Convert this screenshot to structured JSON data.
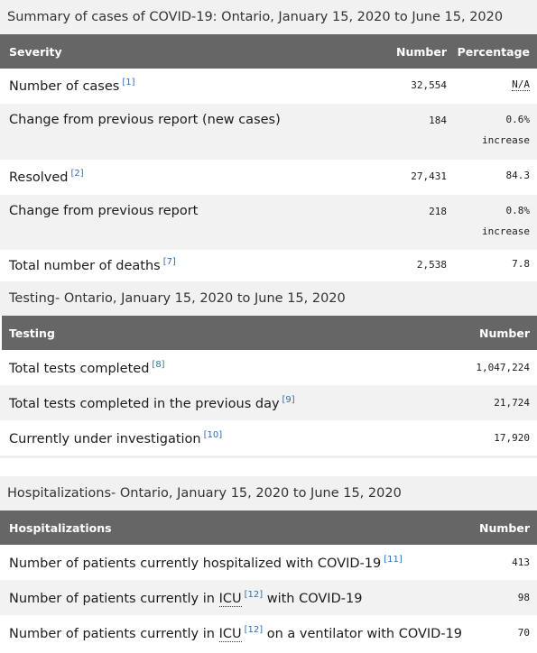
{
  "summary": {
    "caption": "Summary of cases of COVID-19: Ontario, January 15, 2020 to June 15, 2020",
    "headers": {
      "label": "Severity",
      "number": "Number",
      "percentage": "Percentage"
    },
    "rows": [
      {
        "label": "Number of cases",
        "ref": "[1]",
        "number": "32,554",
        "pct_line1": "N/A",
        "pct_line2": ""
      },
      {
        "label": "Change from previous report (new cases)",
        "ref": "",
        "number": "184",
        "pct_line1": "0.6%",
        "pct_line2": "increase"
      },
      {
        "label": "Resolved",
        "ref": "[2]",
        "number": "27,431",
        "pct_line1": "84.3",
        "pct_line2": ""
      },
      {
        "label": "Change from previous report",
        "ref": "",
        "number": "218",
        "pct_line1": "0.8%",
        "pct_line2": "increase"
      },
      {
        "label": "Total number of deaths",
        "ref": "[7]",
        "number": "2,538",
        "pct_line1": "7.8",
        "pct_line2": ""
      }
    ]
  },
  "testing": {
    "caption_lead": "Testing",
    "caption_rest": " - Ontario, January 15, 2020 to June 15, 2020",
    "headers": {
      "label": "Testing",
      "number": "Number"
    },
    "rows": [
      {
        "label": "Total tests completed",
        "ref": "[8]",
        "number": "1,047,224"
      },
      {
        "label": "Total tests completed in the previous day",
        "ref": "[9]",
        "number": "21,724"
      },
      {
        "label": "Currently under investigation",
        "ref": "[10]",
        "number": "17,920"
      }
    ]
  },
  "hospital": {
    "caption_lead": "Hospitalizations",
    "caption_rest": " - Ontario, January 15, 2020 to June 15, 2020",
    "headers": {
      "label": "Hospitalizations",
      "number": "Number"
    },
    "rows": [
      {
        "label_a": "Number of patients currently hospitalized with COVID-19",
        "abbr": "",
        "ref": "[11]",
        "label_b": "",
        "number": "413"
      },
      {
        "label_a": "Number of patients currently in ",
        "abbr": "ICU",
        "ref": "[12]",
        "label_b": " with COVID-19",
        "number": "98"
      },
      {
        "label_a": "Number of patients currently in ",
        "abbr": "ICU",
        "ref": "[12]",
        "label_b": " on a ventilator with COVID-19",
        "number": "70"
      }
    ]
  }
}
